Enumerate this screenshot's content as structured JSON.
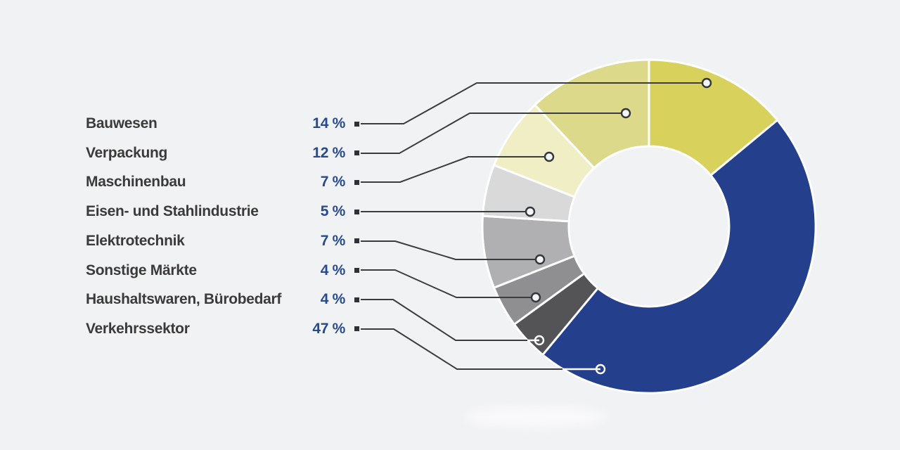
{
  "styles": {
    "background": "#f1f2f4",
    "label_color": "#3a3a3a",
    "value_color": "#274a8f",
    "leader_line_color": "#3a3d40",
    "leader_line_light_color": "#ffffff",
    "marker_square_color": "#2e3236",
    "slice_divider_color": "#ffffff"
  },
  "legend": {
    "rows": [
      {
        "label": "Bauwesen",
        "value": "14 %"
      },
      {
        "label": "Verpackung",
        "value": "12 %"
      },
      {
        "label": "Maschinenbau",
        "value": "7 %"
      },
      {
        "label": "Eisen- und Stahlindustrie",
        "value": "5 %"
      },
      {
        "label": "Elektrotechnik",
        "value": "7 %"
      },
      {
        "label": "Sonstige Märkte",
        "value": "4 %"
      },
      {
        "label": "Haushaltswaren, Bürobedarf",
        "value": "4 %"
      },
      {
        "label": "Verkehrssektor",
        "value": "47 %"
      }
    ]
  },
  "chart_data": {
    "type": "pie",
    "subtype": "donut",
    "title": "",
    "unit": "%",
    "total": 100,
    "categories": [
      "Bauwesen",
      "Verpackung",
      "Maschinenbau",
      "Eisen- und Stahlindustrie",
      "Elektrotechnik",
      "Sonstige Märkte",
      "Haushaltswaren, Bürobedarf",
      "Verkehrssektor"
    ],
    "values": [
      14,
      12,
      7,
      5,
      7,
      4,
      4,
      47
    ],
    "colors": [
      "#d8d15c",
      "#ddd98b",
      "#efeec5",
      "#d9d9da",
      "#b0b0b2",
      "#8f8f91",
      "#545457",
      "#24408d"
    ],
    "legend_position": "left",
    "label_format": "{value} %",
    "start_angle_deg_from_top": 0,
    "clockwise_order_from_top": [
      "Bauwesen",
      "Verkehrssektor",
      "Haushaltswaren, Bürobedarf",
      "Sonstige Märkte",
      "Elektrotechnik",
      "Eisen- und Stahlindustrie",
      "Maschinenbau",
      "Verpackung"
    ]
  }
}
